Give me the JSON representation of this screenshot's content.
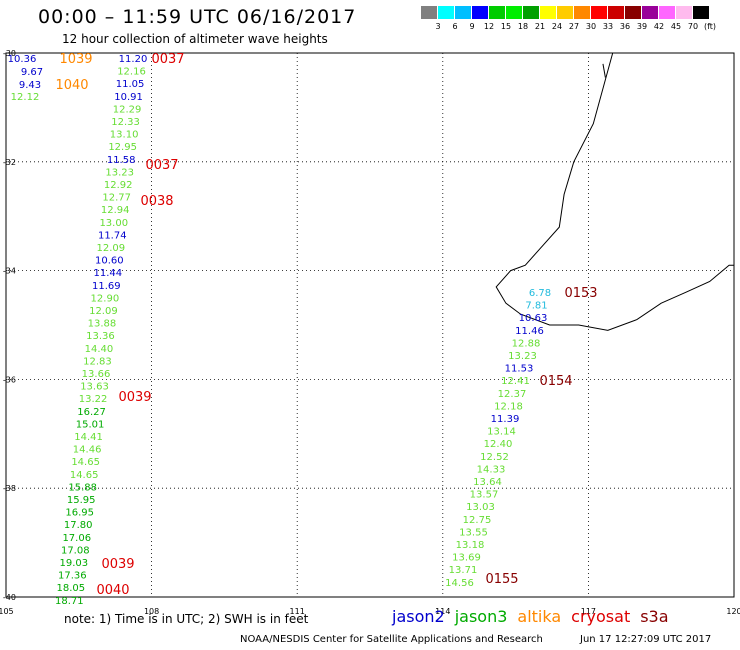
{
  "header": {
    "title": "00:00 – 11:59 UTC 06/16/2017",
    "subtitle": "12 hour collection of altimeter wave heights"
  },
  "colorbar": {
    "colors": [
      "#808080",
      "#00ffff",
      "#00bfff",
      "#0000ff",
      "#00cc00",
      "#00ee00",
      "#00a000",
      "#ffff00",
      "#ffcc00",
      "#ff8800",
      "#ff0000",
      "#cc0000",
      "#880000",
      "#990099",
      "#ff66ff",
      "#ffbbee",
      "#000000"
    ],
    "labels": [
      "3",
      "6",
      "9",
      "12",
      "15",
      "18",
      "21",
      "24",
      "27",
      "30",
      "33",
      "36",
      "39",
      "42",
      "45",
      "70"
    ],
    "unit": "(ft)"
  },
  "axes": {
    "lon_labels": [
      "105",
      "108",
      "111",
      "114",
      "117",
      "120"
    ],
    "lat_labels": [
      "-30",
      "-32",
      "-34",
      "-36",
      "-38",
      "-40"
    ],
    "lon_range": [
      105,
      120
    ],
    "lat_range": [
      -40,
      -30
    ],
    "grid": "dotted"
  },
  "colors": {
    "jason2": "#0000cc",
    "jason3": "#00aa00",
    "jason3_light": "#66dd33",
    "altika": "#ff8800",
    "cryosat": "#dd0000",
    "s3a": "#880000",
    "cyan": "#22bbdd"
  },
  "track_left": [
    {
      "t": "10.36",
      "c": "jason2"
    },
    {
      "t": "9.67",
      "c": "jason2"
    },
    {
      "t": "9.43",
      "c": "jason2"
    },
    {
      "t": "12.12",
      "c": "jason3_light"
    },
    {
      "t": "11.20",
      "c": "jason2"
    },
    {
      "t": "12.16",
      "c": "jason3_light"
    },
    {
      "t": "11.05",
      "c": "jason2"
    },
    {
      "t": "10.91",
      "c": "jason2"
    },
    {
      "t": "12.29",
      "c": "jason3_light"
    },
    {
      "t": "12.33",
      "c": "jason3_light"
    },
    {
      "t": "13.10",
      "c": "jason3_light"
    },
    {
      "t": "12.95",
      "c": "jason3_light"
    },
    {
      "t": "11.58",
      "c": "jason2"
    },
    {
      "t": "13.23",
      "c": "jason3_light"
    },
    {
      "t": "12.92",
      "c": "jason3_light"
    },
    {
      "t": "12.77",
      "c": "jason3_light"
    },
    {
      "t": "12.94",
      "c": "jason3_light"
    },
    {
      "t": "13.00",
      "c": "jason3_light"
    },
    {
      "t": "11.74",
      "c": "jason2"
    },
    {
      "t": "12.09",
      "c": "jason3_light"
    },
    {
      "t": "10.60",
      "c": "jason2"
    },
    {
      "t": "11.44",
      "c": "jason2"
    },
    {
      "t": "11.69",
      "c": "jason2"
    },
    {
      "t": "12.90",
      "c": "jason3_light"
    },
    {
      "t": "12.09",
      "c": "jason3_light"
    },
    {
      "t": "13.88",
      "c": "jason3_light"
    },
    {
      "t": "13.36",
      "c": "jason3_light"
    },
    {
      "t": "14.40",
      "c": "jason3_light"
    },
    {
      "t": "12.83",
      "c": "jason3_light"
    },
    {
      "t": "13.66",
      "c": "jason3_light"
    },
    {
      "t": "13.63",
      "c": "jason3_light"
    },
    {
      "t": "13.22",
      "c": "jason3_light"
    },
    {
      "t": "16.27",
      "c": "jason3"
    },
    {
      "t": "15.01",
      "c": "jason3"
    },
    {
      "t": "14.41",
      "c": "jason3_light"
    },
    {
      "t": "14.46",
      "c": "jason3_light"
    },
    {
      "t": "14.65",
      "c": "jason3_light"
    },
    {
      "t": "14.65",
      "c": "jason3_light"
    },
    {
      "t": "15.88",
      "c": "jason3"
    },
    {
      "t": "15.95",
      "c": "jason3"
    },
    {
      "t": "16.95",
      "c": "jason3"
    },
    {
      "t": "17.80",
      "c": "jason3"
    },
    {
      "t": "17.06",
      "c": "jason3"
    },
    {
      "t": "17.08",
      "c": "jason3"
    },
    {
      "t": "19.03",
      "c": "jason3"
    },
    {
      "t": "17.36",
      "c": "jason3"
    },
    {
      "t": "18.05",
      "c": "jason3"
    },
    {
      "t": "18.71",
      "c": "jason3"
    }
  ],
  "track_right": [
    {
      "t": "6.78",
      "c": "cyan"
    },
    {
      "t": "7.81",
      "c": "cyan"
    },
    {
      "t": "10.63",
      "c": "jason2"
    },
    {
      "t": "11.46",
      "c": "jason2"
    },
    {
      "t": "12.88",
      "c": "jason3_light"
    },
    {
      "t": "13.23",
      "c": "jason3_light"
    },
    {
      "t": "11.53",
      "c": "jason2"
    },
    {
      "t": "12.41",
      "c": "jason3_light"
    },
    {
      "t": "12.37",
      "c": "jason3_light"
    },
    {
      "t": "12.18",
      "c": "jason3_light"
    },
    {
      "t": "11.39",
      "c": "jason2"
    },
    {
      "t": "13.14",
      "c": "jason3_light"
    },
    {
      "t": "12.40",
      "c": "jason3_light"
    },
    {
      "t": "12.52",
      "c": "jason3_light"
    },
    {
      "t": "14.33",
      "c": "jason3_light"
    },
    {
      "t": "13.64",
      "c": "jason3_light"
    },
    {
      "t": "13.57",
      "c": "jason3_light"
    },
    {
      "t": "13.03",
      "c": "jason3_light"
    },
    {
      "t": "12.75",
      "c": "jason3_light"
    },
    {
      "t": "13.55",
      "c": "jason3_light"
    },
    {
      "t": "13.18",
      "c": "jason3_light"
    },
    {
      "t": "13.69",
      "c": "jason3_light"
    },
    {
      "t": "13.71",
      "c": "jason3_light"
    },
    {
      "t": "14.56",
      "c": "jason3_light"
    }
  ],
  "time_labels": [
    {
      "t": "1039",
      "c": "altika"
    },
    {
      "t": "1040",
      "c": "altika"
    },
    {
      "t": "0037",
      "c": "cryosat"
    },
    {
      "t": "0037",
      "c": "cryosat"
    },
    {
      "t": "0038",
      "c": "cryosat"
    },
    {
      "t": "0039",
      "c": "cryosat"
    },
    {
      "t": "0039",
      "c": "cryosat"
    },
    {
      "t": "0040",
      "c": "cryosat"
    },
    {
      "t": "0153",
      "c": "s3a"
    },
    {
      "t": "0154",
      "c": "s3a"
    },
    {
      "t": "0155",
      "c": "s3a"
    }
  ],
  "footer": {
    "note": "note: 1) Time is in UTC; 2) SWH is in feet",
    "legend": [
      {
        "label": "jason2",
        "color": "#0000cc"
      },
      {
        "label": "jason3",
        "color": "#00aa00"
      },
      {
        "label": "altika",
        "color": "#ff8800"
      },
      {
        "label": "cryosat",
        "color": "#dd0000"
      },
      {
        "label": "s3a",
        "color": "#880000"
      }
    ],
    "credit": "NOAA/NESDIS Center for Satellite Applications and Research",
    "timestamp": "Jun 17 12:27:09 UTC 2017"
  }
}
